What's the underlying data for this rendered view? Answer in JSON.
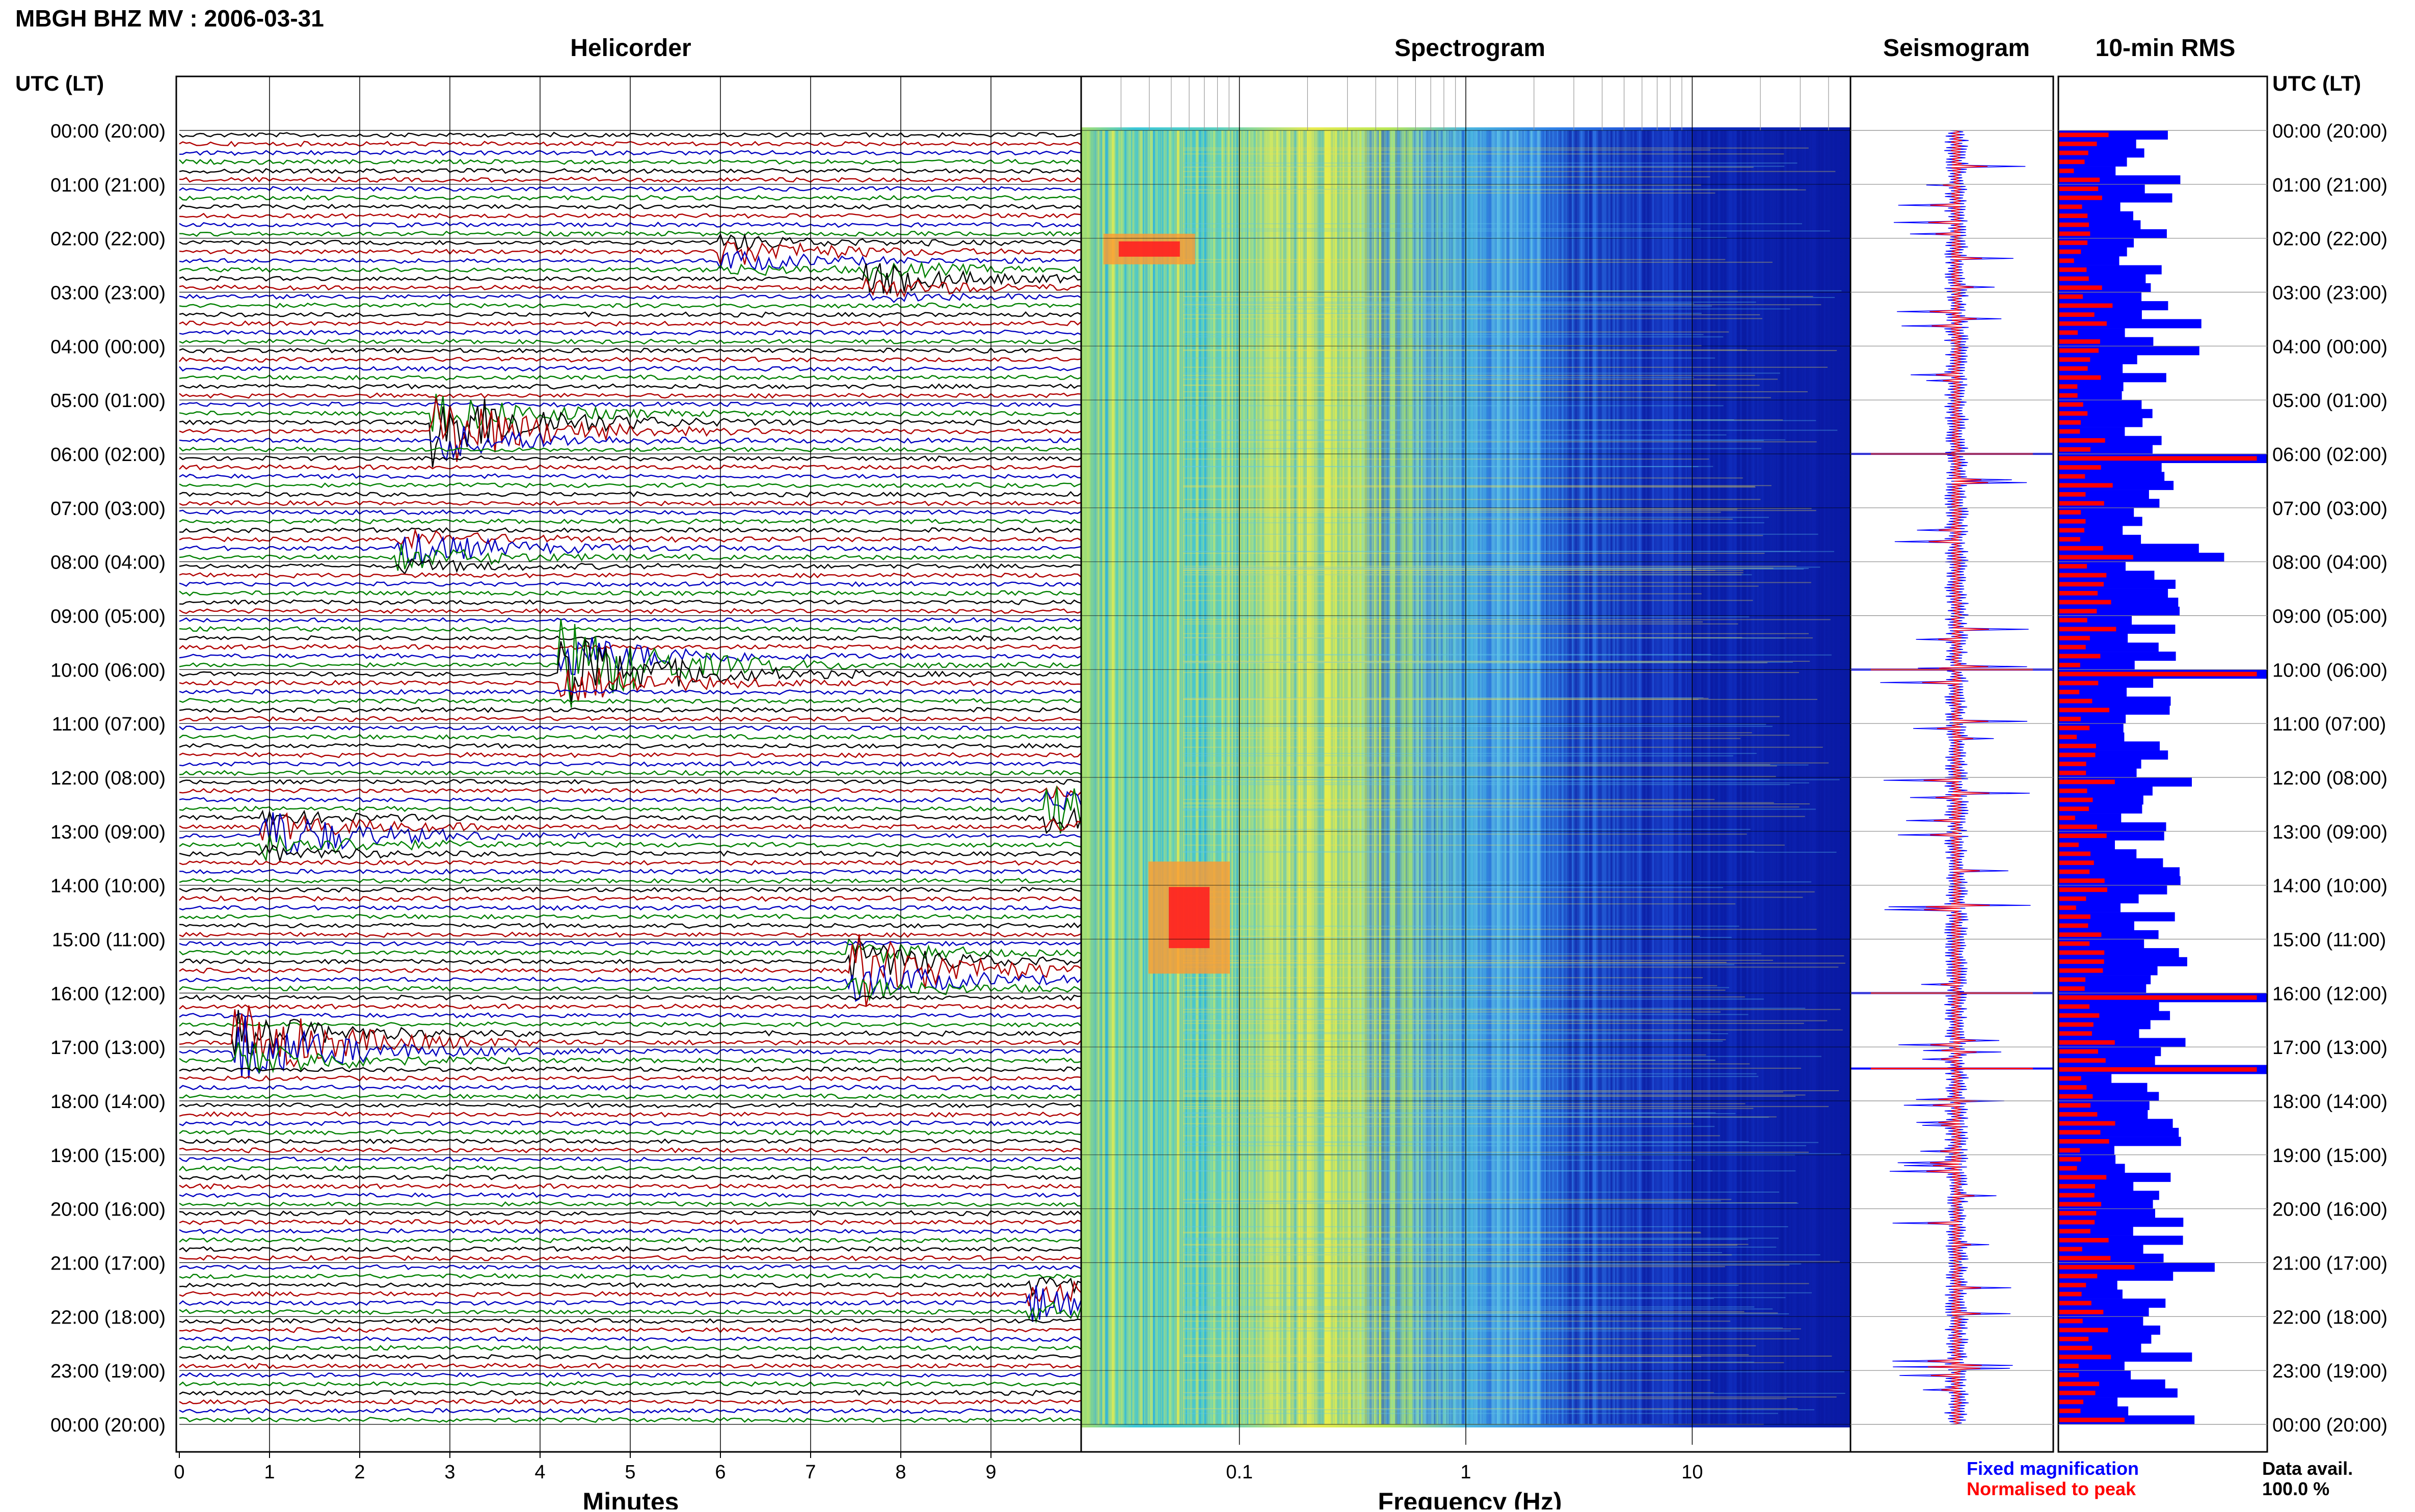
{
  "header": {
    "title": "MBGH BHZ MV : 2006-03-31",
    "utc_label": "UTC (LT)"
  },
  "panels": {
    "helicorder": "Helicorder",
    "spectrogram": "Spectrogram",
    "seismogram": "Seismogram",
    "rms": "10-min RMS"
  },
  "footer": {
    "fixed": "Fixed magnification",
    "normalised": "Normalised to peak",
    "data_avail_label": "Data avail.",
    "data_avail_value": "100.0 %"
  },
  "colors": {
    "trace_cycle": [
      "#000000",
      "#b00000",
      "#0000c0",
      "#008000"
    ],
    "blue": "#0000ff",
    "red": "#ff0000"
  },
  "chart_data": [
    {
      "type": "line",
      "name": "helicorder",
      "title": "Helicorder",
      "xlabel": "Minutes",
      "xticks": [
        "0",
        "1",
        "2",
        "3",
        "4",
        "5",
        "6",
        "7",
        "8",
        "9"
      ],
      "xlim": [
        0,
        10
      ],
      "row_labels": [
        "00:00 (20:00)",
        "01:00 (21:00)",
        "02:00 (22:00)",
        "03:00 (23:00)",
        "04:00 (00:00)",
        "05:00 (01:00)",
        "06:00 (02:00)",
        "07:00 (03:00)",
        "08:00 (04:00)",
        "09:00 (05:00)",
        "10:00 (06:00)",
        "11:00 (07:00)",
        "12:00 (08:00)",
        "13:00 (09:00)",
        "14:00 (10:00)",
        "15:00 (11:00)",
        "16:00 (12:00)",
        "17:00 (13:00)",
        "18:00 (14:00)",
        "19:00 (15:00)",
        "20:00 (16:00)",
        "21:00 (17:00)",
        "22:00 (18:00)",
        "23:00 (19:00)",
        "00:00 (20:00)"
      ],
      "traces_per_hour": 6,
      "events": [
        {
          "hour": 5.4,
          "minute": 3.0,
          "amp": 3.2
        },
        {
          "hour": 9.9,
          "minute": 4.4,
          "amp": 3.6
        },
        {
          "hour": 15.5,
          "minute": 7.6,
          "amp": 2.4
        },
        {
          "hour": 16.9,
          "minute": 0.8,
          "amp": 3.2
        },
        {
          "hour": 13.0,
          "minute": 1.1,
          "amp": 1.6
        },
        {
          "hour": 12.5,
          "minute": 9.8,
          "amp": 1.4
        },
        {
          "hour": 21.6,
          "minute": 9.6,
          "amp": 1.4
        },
        {
          "hour": 7.7,
          "minute": 2.6,
          "amp": 1.2
        },
        {
          "hour": 2.2,
          "minute": 6.2,
          "amp": 1.0
        },
        {
          "hour": 2.7,
          "minute": 7.8,
          "amp": 1.0
        }
      ]
    },
    {
      "type": "heatmap",
      "name": "spectrogram",
      "title": "Spectrogram",
      "xlabel": "Frequency (Hz)",
      "xscale": "log",
      "xlim": [
        0.02,
        50
      ],
      "xticks": [
        "0.1",
        "1",
        "10"
      ],
      "hot_spots": [
        {
          "hour": 14.6,
          "freq": 0.06
        },
        {
          "hour": 2.2,
          "freq": 0.04
        }
      ]
    },
    {
      "type": "line",
      "name": "seismogram",
      "title": "Seismogram",
      "spikes_hours": [
        6.0,
        10.0,
        16.0,
        17.4
      ]
    },
    {
      "type": "bar",
      "name": "rms",
      "title": "10-min RMS",
      "series": [
        {
          "name": "Fixed magnification",
          "color": "#0000ff"
        },
        {
          "name": "Normalised to peak",
          "color": "#ff0000"
        }
      ],
      "peaks_hours": [
        6.0,
        10.0,
        16.0,
        17.4
      ]
    }
  ]
}
